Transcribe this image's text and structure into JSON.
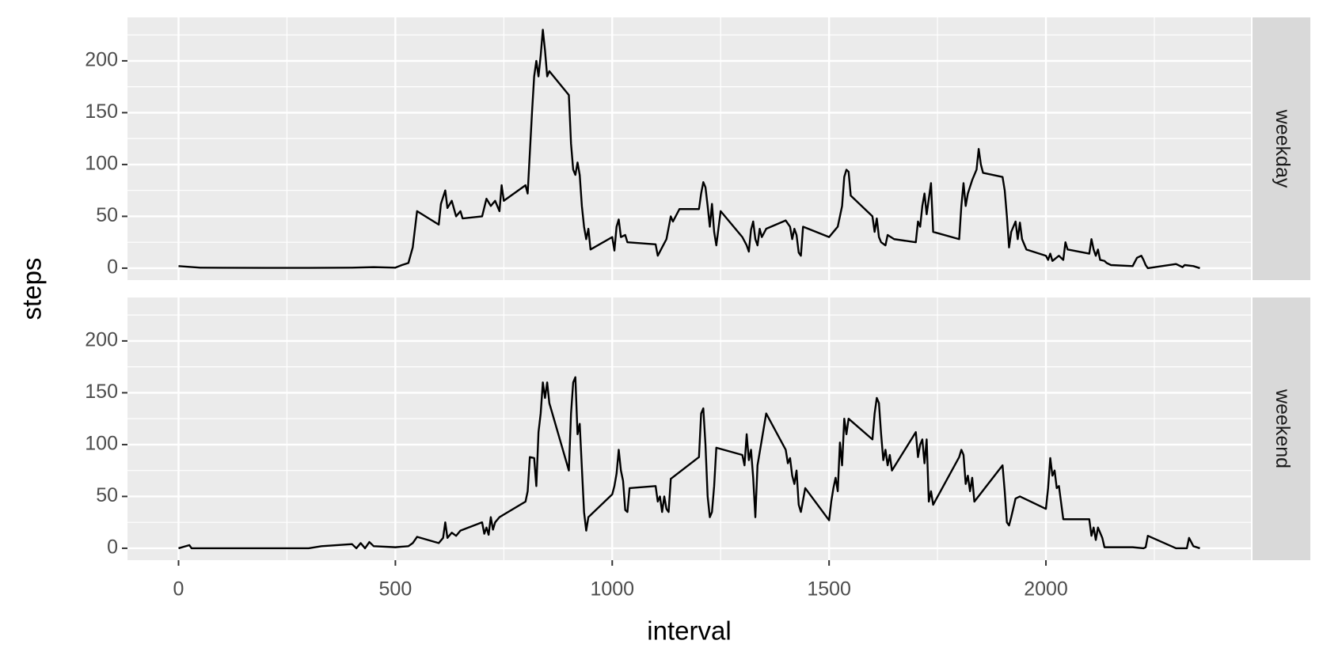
{
  "chart_data": [
    {
      "type": "line",
      "facet": "weekday",
      "ylabel": "steps",
      "color": "#000000",
      "grid": true,
      "xlim": [
        -117.75,
        2472.75
      ],
      "xticks": [
        0,
        500,
        1000,
        1500,
        2000
      ],
      "x_minor_ticks": [
        250,
        750,
        1250,
        1750,
        2250
      ],
      "ylim": [
        -11.5,
        241.9
      ],
      "yticks": [
        0,
        50,
        100,
        150,
        200
      ],
      "y_minor_ticks": [
        25,
        75,
        125,
        175,
        225
      ],
      "x": [
        0,
        50,
        100,
        200,
        300,
        400,
        450,
        500,
        515,
        530,
        540,
        550,
        600,
        605,
        615,
        620,
        630,
        640,
        650,
        655,
        700,
        710,
        720,
        730,
        740,
        745,
        750,
        800,
        805,
        815,
        820,
        825,
        830,
        835,
        840,
        845,
        850,
        855,
        900,
        905,
        910,
        915,
        920,
        925,
        930,
        935,
        940,
        945,
        950,
        1000,
        1005,
        1010,
        1015,
        1020,
        1030,
        1035,
        1100,
        1105,
        1115,
        1125,
        1135,
        1140,
        1155,
        1200,
        1205,
        1210,
        1215,
        1220,
        1225,
        1230,
        1235,
        1240,
        1250,
        1300,
        1310,
        1315,
        1320,
        1325,
        1330,
        1335,
        1340,
        1345,
        1355,
        1400,
        1410,
        1415,
        1420,
        1425,
        1430,
        1435,
        1440,
        1500,
        1510,
        1520,
        1530,
        1535,
        1540,
        1545,
        1550,
        1600,
        1605,
        1610,
        1615,
        1620,
        1630,
        1635,
        1650,
        1700,
        1705,
        1710,
        1715,
        1720,
        1725,
        1735,
        1740,
        1800,
        1805,
        1810,
        1815,
        1820,
        1830,
        1840,
        1845,
        1850,
        1855,
        1900,
        1905,
        1910,
        1915,
        1920,
        1930,
        1935,
        1940,
        1945,
        1955,
        2000,
        2005,
        2010,
        2015,
        2030,
        2040,
        2045,
        2050,
        2100,
        2105,
        2110,
        2115,
        2120,
        2125,
        2135,
        2140,
        2150,
        2200,
        2210,
        2220,
        2225,
        2230,
        2235,
        2300,
        2315,
        2320,
        2340,
        2355
      ],
      "values": [
        2,
        0.5,
        0.4,
        0.3,
        0.3,
        0.5,
        1,
        0.5,
        3,
        5,
        20,
        55,
        42,
        62,
        75,
        58,
        65,
        50,
        55,
        48,
        50,
        67,
        60,
        65,
        55,
        80,
        65,
        80,
        72,
        150,
        185,
        200,
        185,
        205,
        230,
        210,
        185,
        190,
        167,
        120,
        95,
        90,
        102,
        90,
        60,
        40,
        28,
        38,
        18,
        30,
        17,
        40,
        47,
        30,
        32,
        25,
        23,
        12,
        20,
        28,
        50,
        45,
        57,
        57,
        72,
        83,
        78,
        60,
        40,
        62,
        35,
        22,
        55,
        30,
        22,
        16,
        37,
        45,
        28,
        22,
        38,
        30,
        38,
        46,
        40,
        28,
        38,
        32,
        15,
        12,
        40,
        30,
        35,
        40,
        60,
        88,
        95,
        93,
        70,
        50,
        35,
        48,
        30,
        25,
        22,
        32,
        28,
        25,
        45,
        40,
        60,
        72,
        52,
        82,
        35,
        28,
        60,
        82,
        60,
        72,
        85,
        95,
        115,
        100,
        92,
        88,
        75,
        50,
        20,
        35,
        45,
        28,
        44,
        28,
        18,
        12,
        8,
        14,
        7,
        12,
        8,
        25,
        18,
        14,
        28,
        18,
        12,
        18,
        8,
        7,
        5,
        3,
        2,
        10,
        12,
        8,
        3,
        0,
        4,
        1,
        3,
        2,
        0
      ]
    },
    {
      "type": "line",
      "facet": "weekend",
      "xlabel": "interval",
      "color": "#000000",
      "grid": true,
      "xlim": [
        -117.75,
        2472.75
      ],
      "xticks": [
        0,
        500,
        1000,
        1500,
        2000
      ],
      "x_minor_ticks": [
        250,
        750,
        1250,
        1750,
        2250
      ],
      "ylim": [
        -11.5,
        241.9
      ],
      "yticks": [
        0,
        50,
        100,
        150,
        200
      ],
      "y_minor_ticks": [
        25,
        75,
        125,
        175,
        225
      ],
      "x": [
        0,
        25,
        30,
        300,
        330,
        400,
        410,
        420,
        430,
        440,
        450,
        500,
        530,
        540,
        550,
        600,
        610,
        615,
        620,
        630,
        640,
        650,
        700,
        705,
        710,
        715,
        720,
        725,
        730,
        740,
        800,
        805,
        810,
        820,
        825,
        830,
        835,
        840,
        845,
        850,
        855,
        900,
        905,
        910,
        915,
        920,
        925,
        935,
        940,
        945,
        1000,
        1005,
        1010,
        1015,
        1020,
        1025,
        1030,
        1035,
        1040,
        1100,
        1105,
        1110,
        1115,
        1120,
        1125,
        1130,
        1135,
        1200,
        1205,
        1210,
        1215,
        1220,
        1225,
        1230,
        1235,
        1240,
        1300,
        1305,
        1310,
        1315,
        1320,
        1325,
        1330,
        1335,
        1355,
        1400,
        1405,
        1410,
        1415,
        1420,
        1425,
        1430,
        1435,
        1445,
        1500,
        1505,
        1510,
        1515,
        1520,
        1525,
        1530,
        1535,
        1540,
        1545,
        1600,
        1605,
        1610,
        1615,
        1620,
        1625,
        1630,
        1635,
        1640,
        1645,
        1700,
        1705,
        1710,
        1715,
        1720,
        1725,
        1730,
        1735,
        1740,
        1800,
        1805,
        1810,
        1815,
        1820,
        1825,
        1830,
        1835,
        1900,
        1905,
        1910,
        1915,
        1920,
        1930,
        1940,
        2000,
        2005,
        2010,
        2015,
        2020,
        2025,
        2030,
        2040,
        2100,
        2105,
        2110,
        2115,
        2120,
        2130,
        2135,
        2200,
        2225,
        2230,
        2235,
        2300,
        2325,
        2330,
        2340,
        2355
      ],
      "values": [
        0,
        3,
        0,
        0,
        2,
        4,
        0,
        5,
        0,
        6,
        2,
        1,
        2,
        5,
        11,
        5,
        10,
        25,
        10,
        15,
        12,
        17,
        25,
        14,
        20,
        13,
        30,
        18,
        25,
        30,
        45,
        55,
        88,
        87,
        60,
        112,
        130,
        160,
        145,
        160,
        140,
        75,
        130,
        160,
        165,
        110,
        120,
        35,
        17,
        30,
        52,
        60,
        72,
        95,
        75,
        65,
        37,
        35,
        58,
        60,
        45,
        50,
        35,
        50,
        38,
        35,
        67,
        88,
        130,
        135,
        100,
        50,
        30,
        35,
        60,
        97,
        90,
        80,
        110,
        85,
        95,
        68,
        30,
        80,
        130,
        95,
        82,
        87,
        70,
        62,
        75,
        42,
        35,
        58,
        27,
        45,
        58,
        68,
        55,
        102,
        80,
        125,
        110,
        125,
        105,
        130,
        145,
        140,
        110,
        85,
        95,
        80,
        90,
        75,
        112,
        88,
        100,
        105,
        82,
        105,
        45,
        55,
        42,
        88,
        95,
        90,
        62,
        70,
        55,
        68,
        45,
        80,
        55,
        25,
        22,
        30,
        48,
        50,
        38,
        58,
        87,
        70,
        75,
        58,
        60,
        28,
        28,
        12,
        20,
        8,
        20,
        10,
        1,
        1,
        0,
        1,
        12,
        0,
        0,
        10,
        2,
        0
      ]
    }
  ]
}
